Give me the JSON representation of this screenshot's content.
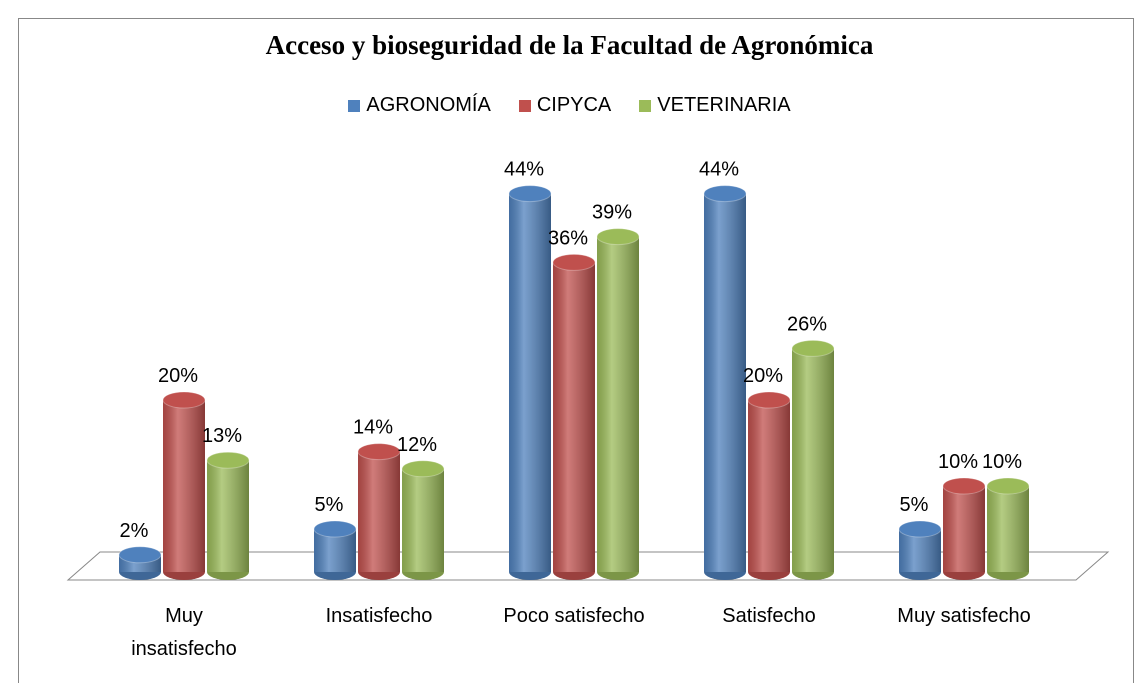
{
  "chart_data": {
    "type": "bar3d",
    "title": "Acceso y bioseguridad de la Facultad de Agronómica",
    "categories": [
      "Muy insatisfecho",
      "Insatisfecho",
      "Poco satisfecho",
      "Satisfecho",
      "Muy satisfecho"
    ],
    "series": [
      {
        "name": "AGRONOMÍA",
        "color": "#4f81bd",
        "values": [
          2,
          5,
          44,
          44,
          5
        ],
        "value_labels": [
          "2%",
          "5%",
          "44%",
          "44%",
          "5%"
        ]
      },
      {
        "name": "CIPYCA",
        "color": "#c0504d",
        "values": [
          20,
          14,
          36,
          20,
          10
        ],
        "value_labels": [
          "20%",
          "14%",
          "36%",
          "20%",
          "10%"
        ]
      },
      {
        "name": "VETERINARIA",
        "color": "#9bbb59",
        "values": [
          13,
          12,
          39,
          26,
          10
        ],
        "value_labels": [
          "13%",
          "12%",
          "39%",
          "26%",
          "10%"
        ]
      }
    ],
    "legend": "top"
  }
}
